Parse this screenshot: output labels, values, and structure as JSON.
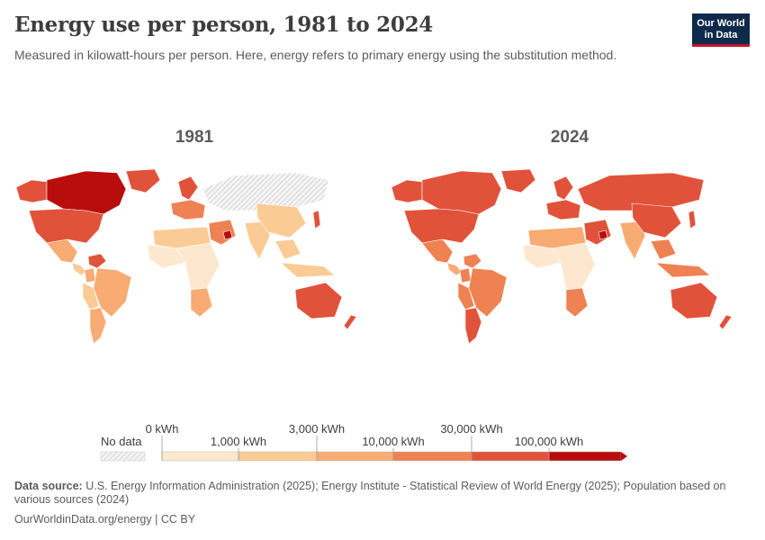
{
  "header": {
    "title": "Energy use per person, 1981 to 2024",
    "subtitle": "Measured in kilowatt-hours per person. Here, energy refers to primary energy using the substitution method."
  },
  "logo": {
    "line1": "Our World",
    "line2": "in Data",
    "bg_color": "#0f2b4c",
    "accent_color": "#c4122f"
  },
  "maps": [
    {
      "year": "1981"
    },
    {
      "year": "2024"
    }
  ],
  "legend": {
    "no_data_label": "No data",
    "thresholds_top": [
      "0 kWh",
      "3,000 kWh",
      "30,000 kWh"
    ],
    "thresholds_bottom": [
      "1,000 kWh",
      "10,000 kWh",
      "100,000 kWh"
    ],
    "colors": [
      "#fde8cf",
      "#fbcb95",
      "#f8ab72",
      "#ef8253",
      "#e1523b",
      "#b90c0c"
    ]
  },
  "footer": {
    "source_label": "Data source:",
    "source_text": "U.S. Energy Information Administration (2025); Energy Institute - Statistical Review of World Energy (2025); Population based on various sources (2024)",
    "url": "OurWorldinData.org/energy",
    "license": "CC BY"
  },
  "chart_data": {
    "type": "choropleth",
    "title": "Energy use per person, 1981 to 2024",
    "unit": "kWh per person",
    "bins": [
      "0–1,000",
      "1,000–3,000",
      "3,000–10,000",
      "10,000–30,000",
      "30,000–100,000",
      ">100,000"
    ],
    "panels": [
      {
        "year": 1981,
        "notes": "Canada and Middle East oil states highest; USSR area no data; Africa mostly low"
      },
      {
        "year": 2024,
        "notes": "Russia, China, Europe, Australia, North America high; Africa mostly low"
      }
    ]
  }
}
